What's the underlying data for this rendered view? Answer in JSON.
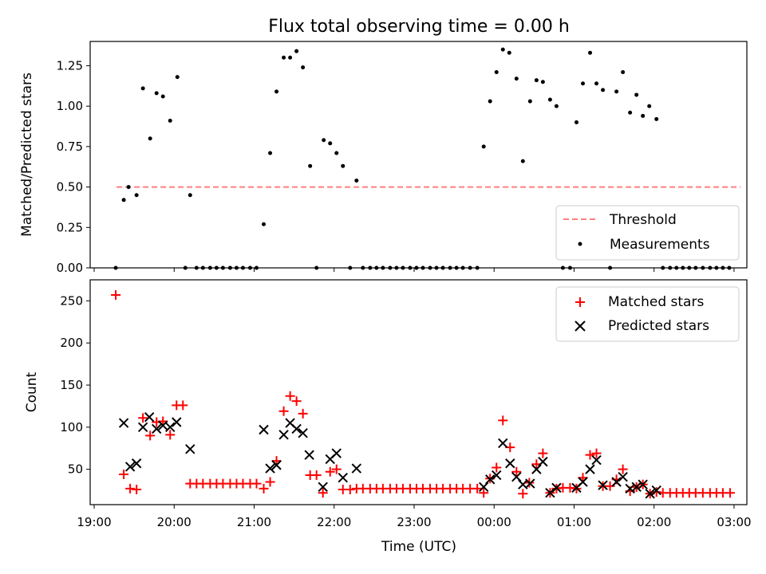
{
  "title": "Flux total observing time = 0.00 h",
  "colors": {
    "threshold": "#ff7f7f",
    "measurement": "#000000",
    "matched": "#ff0000",
    "predicted": "#000000"
  },
  "top": {
    "ylabel": "Matched/Predicted stars",
    "yticks": [
      "0.00",
      "0.25",
      "0.50",
      "0.75",
      "1.00",
      "1.25"
    ],
    "ylim": [
      0,
      1.4
    ],
    "legend": {
      "position": "lower-right",
      "threshold": "Threshold",
      "measurements": "Measurements"
    }
  },
  "bottom": {
    "ylabel": "Count",
    "xlabel": "Time (UTC)",
    "yticks": [
      "50",
      "100",
      "150",
      "200",
      "250"
    ],
    "ylim": [
      8,
      275
    ],
    "legend": {
      "position": "upper-right",
      "matched": "Matched stars",
      "predicted": "Predicted stars"
    }
  },
  "xticks": [
    "19:00",
    "20:00",
    "21:00",
    "22:00",
    "23:00",
    "00:00",
    "01:00",
    "02:00",
    "03:00"
  ],
  "xlim": [
    18.95,
    27.16
  ],
  "chart_data": [
    {
      "type": "scatter",
      "title": "Flux total observing time = 0.00 h",
      "xlabel": "",
      "ylabel": "Matched/Predicted stars",
      "ylim": [
        0,
        1.4
      ],
      "x_unit": "hour of day (UTC); values above 24 are after midnight",
      "threshold": {
        "name": "Threshold",
        "y": 0.5,
        "x": [
          19.28,
          27.08
        ]
      },
      "series": [
        {
          "name": "Measurements",
          "x": [
            19.27,
            19.37,
            19.43,
            19.53,
            19.61,
            19.7,
            19.78,
            19.86,
            19.95,
            20.04,
            20.2,
            20.14,
            20.28,
            20.36,
            20.45,
            20.53,
            20.61,
            20.7,
            20.78,
            20.86,
            20.95,
            21.03,
            21.12,
            21.2,
            21.28,
            21.37,
            21.45,
            21.53,
            21.61,
            21.7,
            21.78,
            21.87,
            21.95,
            22.03,
            22.11,
            22.28,
            22.2,
            22.36,
            22.45,
            22.53,
            22.61,
            22.7,
            22.78,
            22.86,
            22.95,
            23.03,
            23.11,
            23.2,
            23.28,
            23.36,
            23.45,
            23.53,
            23.61,
            23.7,
            23.79,
            23.87,
            23.95,
            24.03,
            24.11,
            24.19,
            24.28,
            24.36,
            24.45,
            24.53,
            24.61,
            24.7,
            24.78,
            24.86,
            24.95,
            25.03,
            25.11,
            25.2,
            25.28,
            25.36,
            25.45,
            25.53,
            25.61,
            25.7,
            25.78,
            25.86,
            25.94,
            26.03,
            26.11,
            26.2,
            26.28,
            26.36,
            26.44,
            26.52,
            26.61,
            26.7,
            26.78,
            26.86,
            26.94
          ],
          "y": [
            0.0,
            0.42,
            0.5,
            0.45,
            1.11,
            0.8,
            1.08,
            1.06,
            0.91,
            1.18,
            0.45,
            0.0,
            0.0,
            0.0,
            0.0,
            0.0,
            0.0,
            0.0,
            0.0,
            0.0,
            0.0,
            0.0,
            0.27,
            0.71,
            1.09,
            1.3,
            1.3,
            1.34,
            1.24,
            0.63,
            0.0,
            0.79,
            0.77,
            0.71,
            0.63,
            0.54,
            0.0,
            0.0,
            0.0,
            0.0,
            0.0,
            0.0,
            0.0,
            0.0,
            0.0,
            0.0,
            0.0,
            0.0,
            0.0,
            0.0,
            0.0,
            0.0,
            0.0,
            0.0,
            0.0,
            0.75,
            1.03,
            1.21,
            1.35,
            1.33,
            1.17,
            0.66,
            1.03,
            1.16,
            1.15,
            1.04,
            1.0,
            0.0,
            0.0,
            0.9,
            1.14,
            1.33,
            1.14,
            1.1,
            0.0,
            1.09,
            1.21,
            0.96,
            1.07,
            0.94,
            1.0,
            0.92,
            0.0,
            0.0,
            0.0,
            0.0,
            0.0,
            0.0,
            0.0,
            0.0,
            0.0,
            0.0,
            0.0
          ]
        }
      ]
    },
    {
      "type": "scatter",
      "title": "",
      "xlabel": "Time (UTC)",
      "ylabel": "Count",
      "ylim": [
        8,
        275
      ],
      "x_unit": "hour of day (UTC); values above 24 are after midnight",
      "series": [
        {
          "name": "Matched stars",
          "x": [
            19.27,
            19.37,
            19.45,
            19.53,
            19.61,
            19.7,
            19.78,
            19.86,
            19.95,
            20.03,
            20.11,
            20.2,
            20.28,
            20.36,
            20.45,
            20.53,
            20.61,
            20.7,
            20.78,
            20.86,
            20.95,
            21.03,
            21.12,
            21.2,
            21.28,
            21.37,
            21.45,
            21.53,
            21.61,
            21.7,
            21.78,
            21.86,
            21.95,
            22.03,
            22.11,
            22.2,
            22.28,
            22.36,
            22.45,
            22.53,
            22.61,
            22.7,
            22.78,
            22.86,
            22.95,
            23.03,
            23.11,
            23.2,
            23.28,
            23.36,
            23.45,
            23.53,
            23.61,
            23.7,
            23.79,
            23.87,
            23.95,
            24.03,
            24.11,
            24.2,
            24.28,
            24.36,
            24.44,
            24.53,
            24.61,
            24.7,
            24.78,
            24.86,
            24.95,
            25.03,
            25.11,
            25.2,
            25.28,
            25.36,
            25.45,
            25.53,
            25.61,
            25.7,
            25.78,
            25.86,
            25.95,
            26.03,
            26.11,
            26.2,
            26.28,
            26.36,
            26.44,
            26.52,
            26.61,
            26.7,
            26.78,
            26.86,
            26.95
          ],
          "y": [
            257,
            44,
            27,
            26,
            111,
            90,
            106,
            107,
            91,
            126,
            126,
            33,
            33,
            33,
            33,
            33,
            33,
            33,
            33,
            33,
            33,
            33,
            27,
            35,
            60,
            119,
            137,
            131,
            116,
            43,
            43,
            22,
            47,
            50,
            26,
            26,
            27,
            27,
            27,
            27,
            27,
            27,
            27,
            27,
            27,
            27,
            27,
            27,
            27,
            27,
            27,
            27,
            27,
            27,
            27,
            22,
            39,
            52,
            108,
            76,
            47,
            21,
            34,
            56,
            69,
            22,
            27,
            28,
            28,
            27,
            40,
            67,
            69,
            30,
            30,
            38,
            50,
            24,
            29,
            32,
            21,
            23,
            22,
            22,
            22,
            22,
            22,
            22,
            22,
            22,
            22,
            22,
            22
          ]
        },
        {
          "name": "Predicted stars",
          "x": [
            19.37,
            19.45,
            19.53,
            19.61,
            19.69,
            19.78,
            19.86,
            19.95,
            20.03,
            20.2,
            21.12,
            21.2,
            21.28,
            21.37,
            21.45,
            21.53,
            21.61,
            21.69,
            21.86,
            21.95,
            22.03,
            22.11,
            22.28,
            23.87,
            23.95,
            24.03,
            24.11,
            24.2,
            24.28,
            24.36,
            24.45,
            24.53,
            24.61,
            24.7,
            24.78,
            25.03,
            25.11,
            25.2,
            25.28,
            25.36,
            25.53,
            25.61,
            25.7,
            25.78,
            25.86,
            25.95,
            26.03
          ],
          "y": [
            105,
            53,
            57,
            100,
            112,
            98,
            102,
            100,
            106,
            74,
            97,
            51,
            55,
            91,
            105,
            98,
            93,
            67,
            29,
            62,
            69,
            40,
            51,
            29,
            38,
            43,
            81,
            57,
            41,
            32,
            33,
            50,
            59,
            22,
            28,
            28,
            35,
            50,
            61,
            31,
            35,
            41,
            27,
            29,
            32,
            21,
            25
          ]
        }
      ]
    }
  ]
}
